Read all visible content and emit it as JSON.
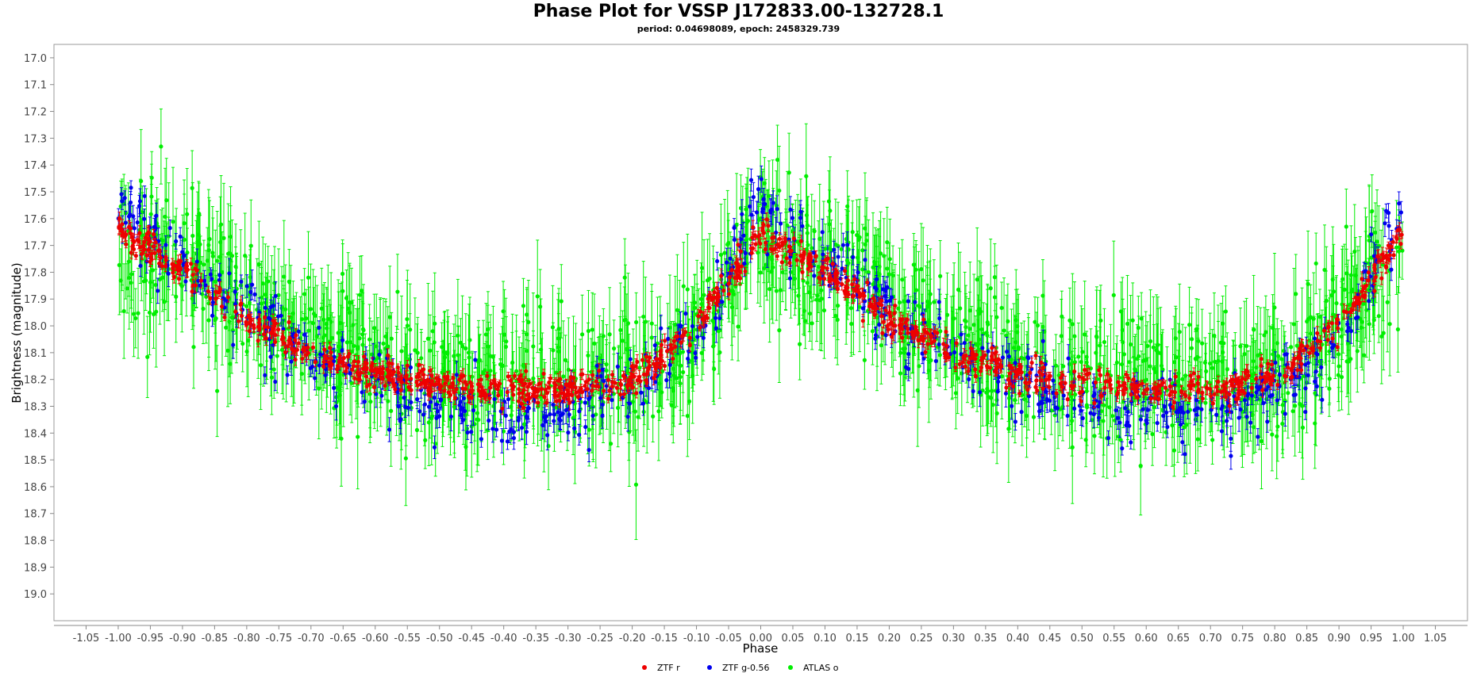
{
  "chart_data": {
    "type": "scatter",
    "title": "Phase Plot for VSSP J172833.00-132728.1",
    "subtitle": "period: 0.04698089, epoch: 2458329.739",
    "xlabel": "Phase",
    "ylabel": "Brightness (magnitude)",
    "xlim": [
      -1.1,
      1.1
    ],
    "ylim": [
      19.1,
      16.95
    ],
    "y_inverted": true,
    "x_ticks": [
      "-1.05",
      "-1.00",
      "-0.95",
      "-0.90",
      "-0.85",
      "-0.80",
      "-0.75",
      "-0.70",
      "-0.65",
      "-0.60",
      "-0.55",
      "-0.50",
      "-0.45",
      "-0.40",
      "-0.35",
      "-0.30",
      "-0.25",
      "-0.20",
      "-0.15",
      "-0.10",
      "-0.05",
      "0.00",
      "0.05",
      "0.10",
      "0.15",
      "0.20",
      "0.25",
      "0.30",
      "0.35",
      "0.40",
      "0.45",
      "0.50",
      "0.55",
      "0.60",
      "0.65",
      "0.70",
      "0.75",
      "0.80",
      "0.85",
      "0.90",
      "0.95",
      "1.00",
      "1.05"
    ],
    "y_ticks": [
      "17.0",
      "17.1",
      "17.2",
      "17.3",
      "17.4",
      "17.5",
      "17.6",
      "17.7",
      "17.8",
      "17.9",
      "18.0",
      "18.1",
      "18.2",
      "18.3",
      "18.4",
      "18.5",
      "18.6",
      "18.7",
      "18.8",
      "18.9",
      "19.0"
    ],
    "grid": false,
    "legend_position": "bottom-center",
    "series": [
      {
        "name": "ATLAS o",
        "color": "#00ee00",
        "phase_range": [
          -1.0,
          1.0
        ],
        "light_curve": {
          "phase": [
            0.0,
            0.1,
            0.2,
            0.3,
            0.4,
            0.5,
            0.6,
            0.7,
            0.8,
            0.9,
            1.0
          ],
          "mag": [
            17.7,
            17.75,
            17.9,
            18.05,
            18.15,
            18.2,
            18.2,
            18.2,
            18.2,
            18.0,
            17.7
          ]
        },
        "scatter": 0.22,
        "error_bar": 0.15,
        "count": 1400
      },
      {
        "name": "ZTF g-0.56",
        "color": "#0000ee",
        "phase_range": [
          -1.0,
          1.0
        ],
        "light_curve": {
          "phase": [
            0.0,
            0.1,
            0.2,
            0.3,
            0.4,
            0.5,
            0.6,
            0.7,
            0.8,
            0.9,
            1.0
          ],
          "mag": [
            17.55,
            17.75,
            17.95,
            18.1,
            18.2,
            18.28,
            18.32,
            18.32,
            18.25,
            18.05,
            17.55
          ]
        },
        "scatter": 0.12,
        "error_bar": 0.04,
        "count": 700
      },
      {
        "name": "ZTF r",
        "color": "#ee0000",
        "phase_range": [
          -1.0,
          1.0
        ],
        "light_curve": {
          "phase": [
            0.0,
            0.1,
            0.2,
            0.3,
            0.4,
            0.5,
            0.6,
            0.7,
            0.8,
            0.9,
            1.0
          ],
          "mag": [
            17.65,
            17.78,
            17.98,
            18.1,
            18.18,
            18.22,
            18.24,
            18.24,
            18.2,
            18.0,
            17.65
          ]
        },
        "scatter": 0.05,
        "error_bar": 0.02,
        "count": 1100
      }
    ],
    "legend": [
      {
        "name": "ZTF r",
        "color": "#ee0000"
      },
      {
        "name": "ZTF g-0.56",
        "color": "#0000ee"
      },
      {
        "name": "ATLAS o",
        "color": "#00ee00"
      }
    ]
  }
}
